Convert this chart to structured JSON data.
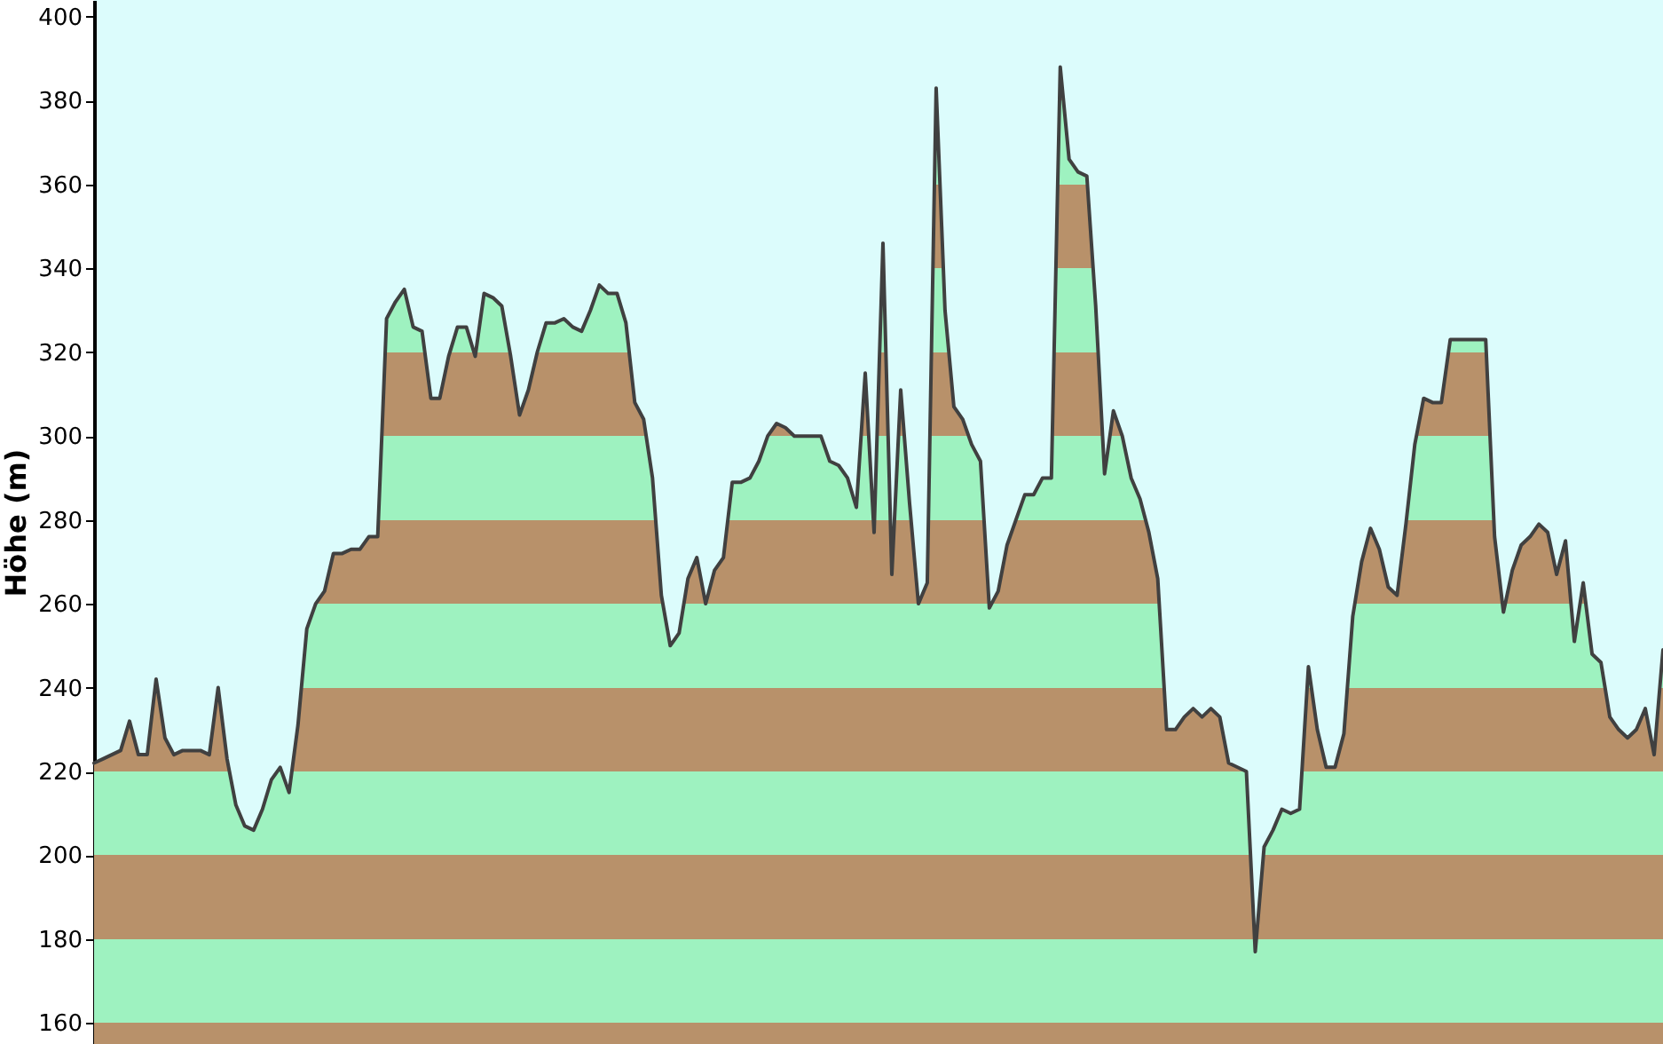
{
  "chart_data": {
    "type": "area",
    "ylabel": "Höhe (m)",
    "categories": [
      null,
      null,
      null,
      null,
      null,
      null,
      null,
      null,
      null,
      null,
      null,
      null,
      null,
      null,
      null,
      null,
      null,
      null,
      null,
      null,
      null,
      null,
      null,
      null,
      null,
      null,
      null,
      null,
      null,
      null,
      null,
      null,
      null,
      null,
      null,
      null,
      null,
      null,
      null,
      null,
      null,
      null,
      null,
      null,
      null,
      null,
      null,
      null,
      null,
      null,
      null,
      null,
      null,
      null,
      null,
      null,
      null,
      null,
      null,
      null,
      null,
      null,
      null,
      null,
      null,
      null,
      null,
      null,
      null,
      null,
      null,
      null,
      null,
      null,
      null,
      null,
      null,
      null,
      null,
      null,
      null,
      null,
      null,
      null,
      null,
      null,
      null,
      null,
      null,
      null,
      null,
      null,
      null,
      null,
      null,
      null,
      null,
      null,
      null,
      null,
      null,
      null,
      null,
      null,
      null,
      null,
      null,
      null,
      null,
      null,
      null,
      null,
      null,
      null,
      null,
      null,
      null,
      null,
      null,
      null,
      null,
      null,
      null,
      null,
      null,
      null,
      null,
      null,
      null,
      null,
      null,
      null,
      null,
      null,
      null,
      null,
      null,
      null,
      null,
      null,
      null,
      null,
      null,
      null,
      null,
      null,
      null,
      null,
      null,
      null,
      null,
      null,
      null,
      null,
      null,
      null,
      null,
      null,
      null,
      null,
      null,
      null,
      null,
      null,
      null,
      null,
      null,
      null,
      null,
      null,
      null,
      null,
      null,
      null,
      null,
      null,
      null,
      null
    ],
    "series": [
      {
        "color": "#404040",
        "values": [
          222,
          223,
          224,
          225,
          232,
          224,
          224,
          242,
          228,
          224,
          225,
          225,
          225,
          224,
          240,
          223,
          212,
          207,
          206,
          211,
          218,
          221,
          215,
          231,
          254,
          260,
          263,
          272,
          272,
          273,
          273,
          276,
          276,
          328,
          332,
          335,
          326,
          325,
          309,
          309,
          319,
          326,
          326,
          319,
          334,
          333,
          331,
          319,
          305,
          311,
          320,
          327,
          327,
          328,
          326,
          325,
          330,
          336,
          334,
          334,
          327,
          308,
          304,
          290,
          262,
          250,
          253,
          266,
          271,
          260,
          268,
          271,
          289,
          289,
          290,
          294,
          300,
          303,
          302,
          300,
          300,
          300,
          300,
          294,
          293,
          290,
          283,
          315,
          277,
          346,
          267,
          311,
          284,
          260,
          265,
          383,
          330,
          307,
          304,
          298,
          294,
          259,
          263,
          274,
          280,
          286,
          286,
          290,
          290,
          388,
          366,
          363,
          362,
          331,
          291,
          306,
          300,
          290,
          285,
          277,
          266,
          230,
          230,
          233,
          235,
          233,
          235,
          233,
          222,
          221,
          220,
          177,
          202,
          206,
          211,
          210,
          211,
          245,
          230,
          221,
          221,
          229,
          257,
          270,
          278,
          273,
          264,
          262,
          279,
          298,
          309,
          308,
          308,
          323,
          323,
          323,
          323,
          323,
          276,
          258,
          268,
          274,
          276,
          279,
          277,
          267,
          275,
          251,
          265,
          248,
          246,
          233,
          230,
          228,
          230,
          235,
          224,
          249
        ]
      }
    ],
    "ylim": [
      155,
      404
    ],
    "yticks": [
      160,
      180,
      200,
      220,
      240,
      260,
      280,
      300,
      320,
      340,
      360,
      380,
      400
    ],
    "tick_labels": "y"
  }
}
